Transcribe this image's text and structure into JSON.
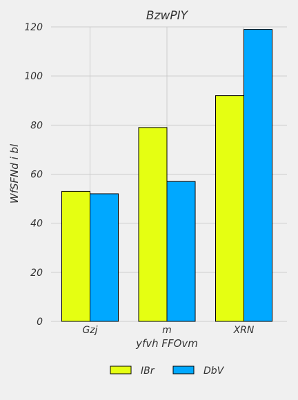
{
  "chart_data": {
    "type": "bar",
    "title": "BzwPIY",
    "xlabel": "yfvh FFOvm",
    "ylabel": "WfSFNd i bl",
    "categories": [
      "Gzj",
      "m",
      "XRN"
    ],
    "series": [
      {
        "name": "IBr",
        "values": [
          53,
          79,
          92
        ],
        "color": "#e5ff12"
      },
      {
        "name": "DbV",
        "values": [
          52,
          57,
          119
        ],
        "color": "#00a8ff"
      }
    ],
    "ylim": [
      0,
      120
    ],
    "yticks": [
      0,
      20,
      40,
      60,
      80,
      100,
      120
    ],
    "grid": true,
    "legend_position": "bottom-center"
  },
  "colors": {
    "background": "#f0f0f0",
    "grid": "#cbcbcb",
    "bar_edge": "#000000",
    "text": "#333333"
  }
}
